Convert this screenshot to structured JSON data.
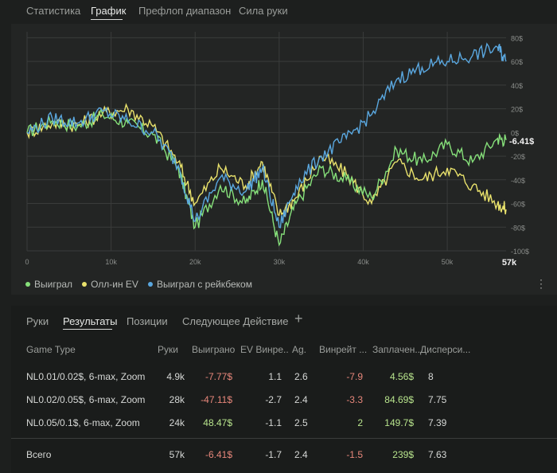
{
  "top_tabs": [
    "Статистика",
    "График",
    "Префлоп диапазон",
    "Сила руки"
  ],
  "active_top_tab": "График",
  "chart": {
    "y_ticks": [
      "80$",
      "60$",
      "40$",
      "20$",
      "0$",
      "-20$",
      "-40$",
      "-60$",
      "-80$",
      "-100$"
    ],
    "x_ticks": [
      "0",
      "10k",
      "20k",
      "30k",
      "40k",
      "50k",
      "57k"
    ],
    "current_value_label": "-6.41$",
    "colors": {
      "won": "#86e07a",
      "allin_ev": "#e9e26c",
      "won_rakeback": "#5aa7df",
      "grid": "#3a3c3b",
      "axis_text": "#8a8d8a"
    }
  },
  "chart_data": {
    "type": "line",
    "x": [
      0,
      3000,
      6000,
      9000,
      12000,
      15000,
      18000,
      20000,
      23000,
      26000,
      28000,
      30000,
      32000,
      35000,
      38000,
      41000,
      44000,
      47000,
      50000,
      53000,
      56000,
      57000
    ],
    "series": [
      {
        "name": "Выиграл",
        "values": [
          0,
          10,
          5,
          15,
          8,
          -2,
          -30,
          -80,
          -45,
          -60,
          -40,
          -95,
          -60,
          -30,
          -40,
          -55,
          -15,
          -25,
          -10,
          -25,
          -5,
          -6.41
        ]
      },
      {
        "name": "Олл-ин EV",
        "values": [
          0,
          8,
          6,
          16,
          20,
          5,
          -25,
          -60,
          -30,
          -45,
          -25,
          -70,
          -55,
          -20,
          -35,
          -60,
          -25,
          -40,
          -30,
          -45,
          -60,
          -65
        ]
      },
      {
        "name": "Выиграл с рейкбеком",
        "values": [
          0,
          12,
          8,
          18,
          10,
          0,
          -28,
          -75,
          -38,
          -50,
          -30,
          -80,
          -45,
          -20,
          -5,
          15,
          45,
          55,
          60,
          65,
          72,
          60
        ]
      }
    ],
    "xlim": [
      0,
      57000
    ],
    "ylim": [
      -100,
      85
    ],
    "grid": true,
    "legend": "bottom-left"
  },
  "legend": [
    {
      "label": "Выиграл",
      "color": "#86e07a"
    },
    {
      "label": "Олл-ин EV",
      "color": "#e9e26c"
    },
    {
      "label": "Выиграл с рейкбеком",
      "color": "#5aa7df"
    }
  ],
  "sub_tabs": [
    "Руки",
    "Результаты",
    "Позиции",
    "Следующее Действие"
  ],
  "active_sub_tab": "Результаты",
  "plus_label": "+",
  "table": {
    "headers": [
      "Game Type",
      "Руки",
      "Выиграно",
      "EV Винре...",
      "Ag.",
      "Винрейт ...",
      "Заплачен...",
      "Дисперси..."
    ],
    "rows": [
      [
        "NL0.01/0.02$, 6-max, Zoom",
        "4.9k",
        "-7.77$",
        "1.1",
        "2.6",
        "-7.9",
        "4.56$",
        "8"
      ],
      [
        "NL0.02/0.05$, 6-max, Zoom",
        "28k",
        "-47.11$",
        "-2.7",
        "2.4",
        "-3.3",
        "84.69$",
        "7.75"
      ],
      [
        "NL0.05/0.1$, 6-max, Zoom",
        "24k",
        "48.47$",
        "-1.1",
        "2.5",
        "2",
        "149.7$",
        "7.39"
      ]
    ],
    "total": [
      "Всего",
      "57k",
      "-6.41$",
      "-1.7",
      "2.4",
      "-1.5",
      "239$",
      "7.63"
    ]
  }
}
